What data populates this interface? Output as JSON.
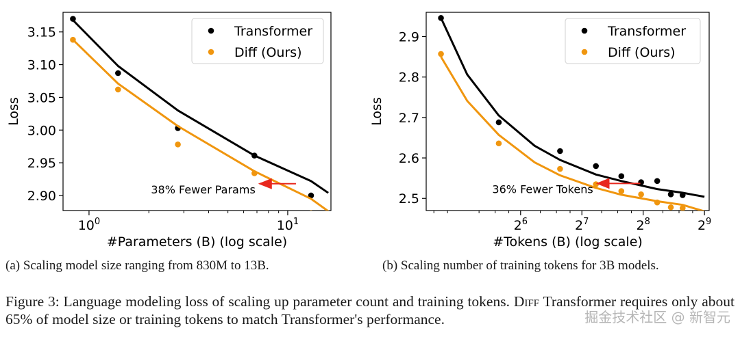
{
  "colors": {
    "transformer": "#000000",
    "diff": "#f0960f",
    "arrow": "#e8281e"
  },
  "chart_data": [
    {
      "id": "a",
      "type": "scatter",
      "xscale": "log10",
      "xlabel": "#Parameters (B) (log scale)",
      "ylabel": "Loss",
      "xlim": [
        0.74,
        16.5
      ],
      "ylim": [
        2.877,
        3.18
      ],
      "yticks": [
        2.9,
        2.95,
        3.0,
        3.05,
        3.1,
        3.15
      ],
      "ytick_labels": [
        "2.90",
        "2.95",
        "3.00",
        "3.05",
        "3.10",
        "3.15"
      ],
      "xticks": [
        {
          "value": 1,
          "base": "10",
          "exp": "0"
        },
        {
          "value": 10,
          "base": "10",
          "exp": "1"
        }
      ],
      "legend": {
        "position": "top-right",
        "entries": [
          "Transformer",
          "Diff (Ours)"
        ]
      },
      "series": [
        {
          "name": "Transformer",
          "color": "#000000",
          "points": [
            [
              0.83,
              3.17
            ],
            [
              1.4,
              3.087
            ],
            [
              2.8,
              3.003
            ],
            [
              6.8,
              2.961
            ],
            [
              13.1,
              2.9
            ]
          ],
          "fit": [
            [
              0.83,
              3.168
            ],
            [
              1.4,
              3.098
            ],
            [
              2.8,
              3.03
            ],
            [
              6.8,
              2.961
            ],
            [
              13.1,
              2.922
            ],
            [
              16.0,
              2.904
            ]
          ]
        },
        {
          "name": "Diff (Ours)",
          "color": "#f0960f",
          "points": [
            [
              0.83,
              3.138
            ],
            [
              1.4,
              3.062
            ],
            [
              2.8,
              2.978
            ],
            [
              6.8,
              2.934
            ],
            [
              13.1,
              2.873
            ]
          ],
          "fit": [
            [
              0.83,
              3.138
            ],
            [
              1.4,
              3.071
            ],
            [
              2.8,
              3.006
            ],
            [
              6.8,
              2.937
            ],
            [
              13.1,
              2.895
            ],
            [
              16.0,
              2.876
            ]
          ]
        }
      ],
      "annotation": {
        "text": "38% Fewer Params",
        "arrow_from": [
          11.0,
          2.918
        ],
        "arrow_to": [
          7.1,
          2.918
        ]
      }
    },
    {
      "id": "b",
      "type": "scatter",
      "xscale": "log2",
      "xlabel": "#Tokens (B) (log scale)",
      "ylabel": "Loss",
      "xlim": [
        22,
        540
      ],
      "ylim": [
        2.47,
        2.96
      ],
      "yticks": [
        2.5,
        2.6,
        2.7,
        2.8,
        2.9
      ],
      "ytick_labels": [
        "2.5",
        "2.6",
        "2.7",
        "2.8",
        "2.9"
      ],
      "xticks": [
        {
          "value": 64,
          "base": "2",
          "exp": "6"
        },
        {
          "value": 128,
          "base": "2",
          "exp": "7"
        },
        {
          "value": 256,
          "base": "2",
          "exp": "8"
        },
        {
          "value": 512,
          "base": "2",
          "exp": "9"
        }
      ],
      "legend": {
        "position": "top-right",
        "entries": [
          "Transformer",
          "Diff (Ours)"
        ]
      },
      "series": [
        {
          "name": "Transformer",
          "color": "#000000",
          "points": [
            [
              26,
              2.946
            ],
            [
              50,
              2.688
            ],
            [
              100,
              2.617
            ],
            [
              150,
              2.58
            ],
            [
              200,
              2.555
            ],
            [
              250,
              2.54
            ],
            [
              300,
              2.543
            ],
            [
              350,
              2.51
            ],
            [
              400,
              2.508
            ]
          ],
          "fit": [
            [
              26,
              2.946
            ],
            [
              35,
              2.806
            ],
            [
              50,
              2.705
            ],
            [
              75,
              2.63
            ],
            [
              100,
              2.595
            ],
            [
              150,
              2.559
            ],
            [
              200,
              2.543
            ],
            [
              300,
              2.523
            ],
            [
              400,
              2.514
            ],
            [
              512,
              2.504
            ]
          ]
        },
        {
          "name": "Diff (Ours)",
          "color": "#f0960f",
          "points": [
            [
              26,
              2.857
            ],
            [
              50,
              2.636
            ],
            [
              100,
              2.573
            ],
            [
              150,
              2.535
            ],
            [
              200,
              2.518
            ],
            [
              250,
              2.51
            ],
            [
              300,
              2.49
            ],
            [
              350,
              2.478
            ],
            [
              400,
              2.476
            ]
          ],
          "fit": [
            [
              26,
              2.85
            ],
            [
              35,
              2.741
            ],
            [
              50,
              2.657
            ],
            [
              75,
              2.589
            ],
            [
              100,
              2.557
            ],
            [
              150,
              2.526
            ],
            [
              200,
              2.509
            ],
            [
              300,
              2.493
            ],
            [
              400,
              2.484
            ],
            [
              512,
              2.468
            ]
          ]
        }
      ],
      "annotation": {
        "text": "36% Fewer Tokens",
        "arrow_from": [
          248,
          2.537
        ],
        "arrow_to": [
          150,
          2.537
        ]
      }
    }
  ],
  "captions": {
    "a": "(a) Scaling model size ranging from 830M to 13B.",
    "b": "(b) Scaling number of training tokens for 3B models.",
    "figure_prefix": "Figure 3: Language modeling loss of scaling up parameter count and training tokens. ",
    "figure_diff": "Diff",
    "figure_rest": " Transformer requires only about 65% of model size or training tokens to match Transformer's performance."
  },
  "watermark": "掘金技术社区 @ 新智元"
}
